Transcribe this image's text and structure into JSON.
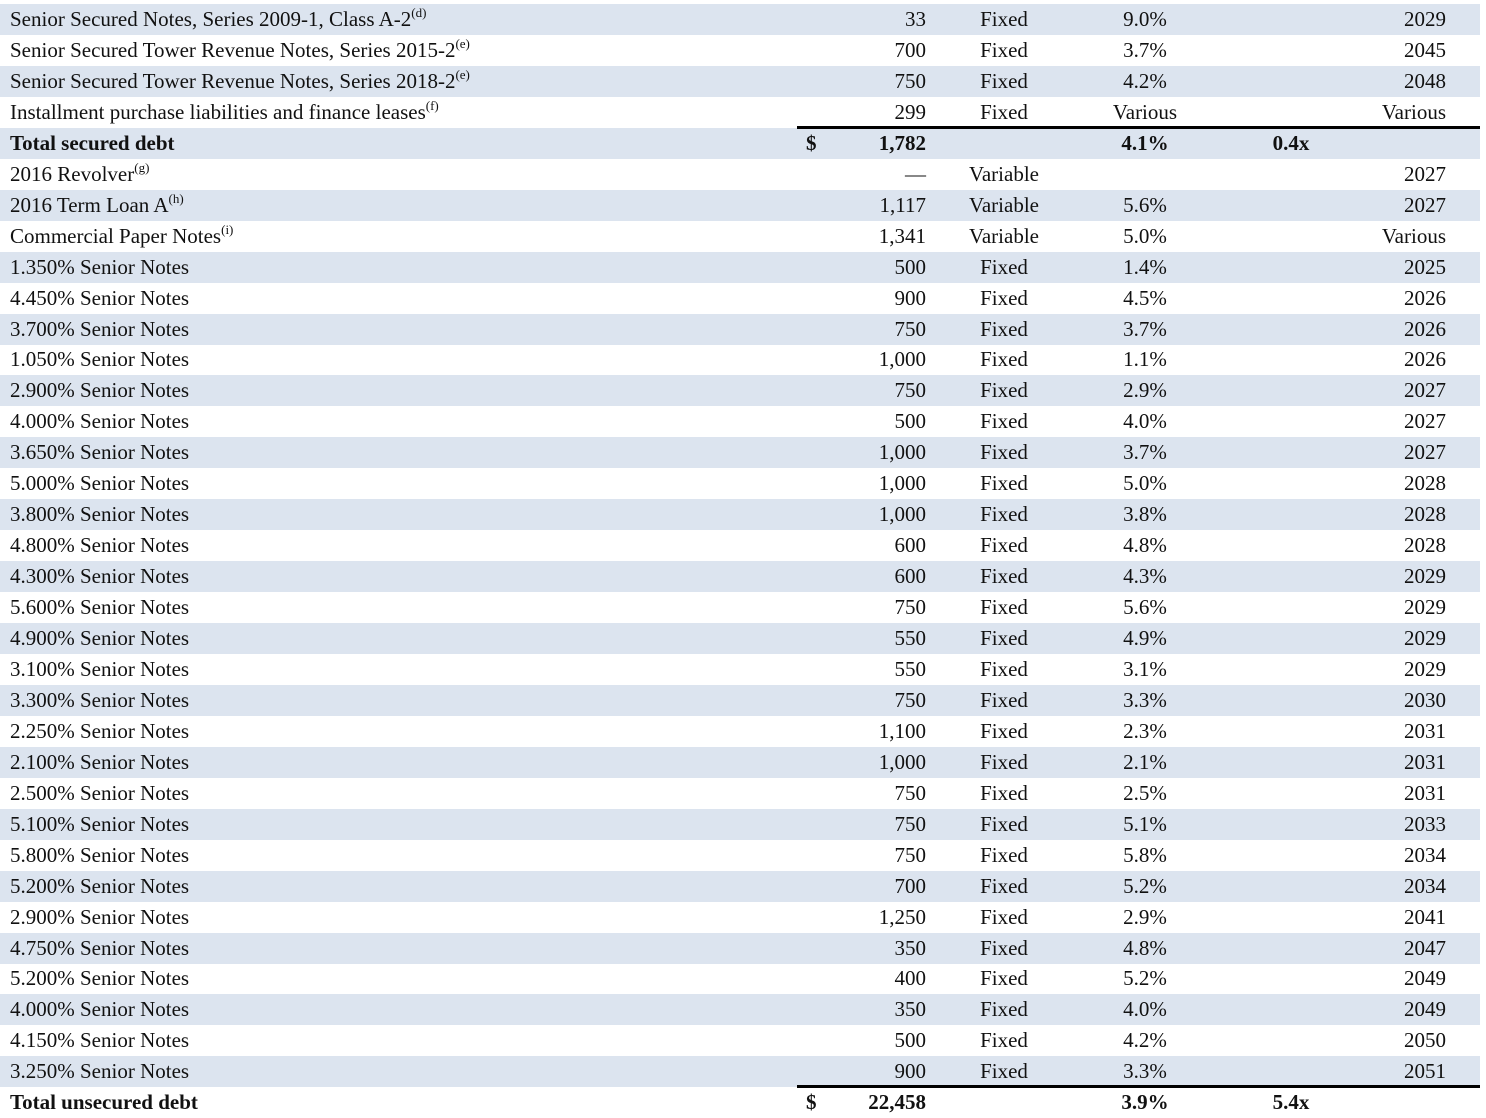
{
  "table": {
    "rows": [
      {
        "desc": "Senior Secured Notes, Series 2009-1, Class A-2",
        "note": "(d)",
        "amount": "33",
        "type": "Fixed",
        "rate": "9.0%",
        "maturity": "2029"
      },
      {
        "desc": "Senior Secured Tower Revenue Notes, Series 2015-2",
        "note": "(e)",
        "amount": "700",
        "type": "Fixed",
        "rate": "3.7%",
        "maturity": "2045"
      },
      {
        "desc": "Senior Secured Tower Revenue Notes, Series 2018-2",
        "note": "(e)",
        "amount": "750",
        "type": "Fixed",
        "rate": "4.2%",
        "maturity": "2048"
      },
      {
        "desc": "Installment purchase liabilities and finance leases",
        "note": "(f)",
        "amount": "299",
        "type": "Fixed",
        "rate": "Various",
        "maturity": "Various"
      },
      {
        "desc": "Total secured debt",
        "total": true,
        "currency": "$",
        "amount": "1,782",
        "rate": "4.1%",
        "leverage": "0.4x"
      },
      {
        "desc": "2016 Revolver",
        "note": "(g)",
        "amount": "—",
        "type": "Variable",
        "maturity": "2027"
      },
      {
        "desc": "2016 Term Loan A",
        "note": "(h)",
        "amount": "1,117",
        "type": "Variable",
        "rate": "5.6%",
        "maturity": "2027"
      },
      {
        "desc": "Commercial Paper Notes",
        "note": "(i)",
        "amount": "1,341",
        "type": "Variable",
        "rate": "5.0%",
        "maturity": "Various"
      },
      {
        "desc": "1.350% Senior Notes",
        "amount": "500",
        "type": "Fixed",
        "rate": "1.4%",
        "maturity": "2025"
      },
      {
        "desc": "4.450% Senior Notes",
        "amount": "900",
        "type": "Fixed",
        "rate": "4.5%",
        "maturity": "2026"
      },
      {
        "desc": "3.700% Senior Notes",
        "amount": "750",
        "type": "Fixed",
        "rate": "3.7%",
        "maturity": "2026"
      },
      {
        "desc": "1.050% Senior Notes",
        "amount": "1,000",
        "type": "Fixed",
        "rate": "1.1%",
        "maturity": "2026"
      },
      {
        "desc": "2.900% Senior Notes",
        "amount": "750",
        "type": "Fixed",
        "rate": "2.9%",
        "maturity": "2027"
      },
      {
        "desc": "4.000% Senior Notes",
        "amount": "500",
        "type": "Fixed",
        "rate": "4.0%",
        "maturity": "2027"
      },
      {
        "desc": "3.650% Senior Notes",
        "amount": "1,000",
        "type": "Fixed",
        "rate": "3.7%",
        "maturity": "2027"
      },
      {
        "desc": "5.000% Senior Notes",
        "amount": "1,000",
        "type": "Fixed",
        "rate": "5.0%",
        "maturity": "2028"
      },
      {
        "desc": "3.800% Senior Notes",
        "amount": "1,000",
        "type": "Fixed",
        "rate": "3.8%",
        "maturity": "2028"
      },
      {
        "desc": "4.800% Senior Notes",
        "amount": "600",
        "type": "Fixed",
        "rate": "4.8%",
        "maturity": "2028"
      },
      {
        "desc": "4.300% Senior Notes",
        "amount": "600",
        "type": "Fixed",
        "rate": "4.3%",
        "maturity": "2029"
      },
      {
        "desc": "5.600% Senior Notes",
        "amount": "750",
        "type": "Fixed",
        "rate": "5.6%",
        "maturity": "2029"
      },
      {
        "desc": "4.900% Senior Notes",
        "amount": "550",
        "type": "Fixed",
        "rate": "4.9%",
        "maturity": "2029"
      },
      {
        "desc": "3.100% Senior Notes",
        "amount": "550",
        "type": "Fixed",
        "rate": "3.1%",
        "maturity": "2029"
      },
      {
        "desc": "3.300% Senior Notes",
        "amount": "750",
        "type": "Fixed",
        "rate": "3.3%",
        "maturity": "2030"
      },
      {
        "desc": "2.250% Senior Notes",
        "amount": "1,100",
        "type": "Fixed",
        "rate": "2.3%",
        "maturity": "2031"
      },
      {
        "desc": "2.100% Senior Notes",
        "amount": "1,000",
        "type": "Fixed",
        "rate": "2.1%",
        "maturity": "2031"
      },
      {
        "desc": "2.500% Senior Notes",
        "amount": "750",
        "type": "Fixed",
        "rate": "2.5%",
        "maturity": "2031"
      },
      {
        "desc": "5.100% Senior Notes",
        "amount": "750",
        "type": "Fixed",
        "rate": "5.1%",
        "maturity": "2033"
      },
      {
        "desc": "5.800% Senior Notes",
        "amount": "750",
        "type": "Fixed",
        "rate": "5.8%",
        "maturity": "2034"
      },
      {
        "desc": "5.200% Senior Notes",
        "amount": "700",
        "type": "Fixed",
        "rate": "5.2%",
        "maturity": "2034"
      },
      {
        "desc": "2.900% Senior Notes",
        "amount": "1,250",
        "type": "Fixed",
        "rate": "2.9%",
        "maturity": "2041"
      },
      {
        "desc": "4.750% Senior Notes",
        "amount": "350",
        "type": "Fixed",
        "rate": "4.8%",
        "maturity": "2047"
      },
      {
        "desc": "5.200% Senior Notes",
        "amount": "400",
        "type": "Fixed",
        "rate": "5.2%",
        "maturity": "2049"
      },
      {
        "desc": "4.000% Senior Notes",
        "amount": "350",
        "type": "Fixed",
        "rate": "4.0%",
        "maturity": "2049"
      },
      {
        "desc": "4.150% Senior Notes",
        "amount": "500",
        "type": "Fixed",
        "rate": "4.2%",
        "maturity": "2050"
      },
      {
        "desc": "3.250% Senior Notes",
        "amount": "900",
        "type": "Fixed",
        "rate": "3.3%",
        "maturity": "2051"
      },
      {
        "desc": "Total unsecured debt",
        "total": true,
        "currency": "$",
        "amount": "22,458",
        "rate": "3.9%",
        "leverage": "5.4x"
      }
    ],
    "colors": {
      "band": "#dce4ef",
      "rule": "#000000",
      "text": "#111111"
    }
  }
}
